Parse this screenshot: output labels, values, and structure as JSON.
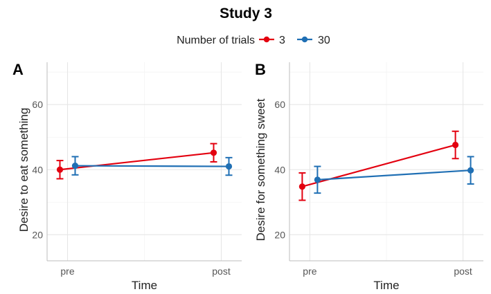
{
  "chart_data": {
    "type": "line",
    "title": "Study 3",
    "legend": {
      "title": "Number of trials",
      "placement": "top",
      "entries": [
        {
          "label": "3",
          "color": "#e3000f"
        },
        {
          "label": "30",
          "color": "#1f6fb4"
        }
      ]
    },
    "panels": [
      {
        "letter": "A",
        "xlabel": "Time",
        "ylabel": "Desire to eat something",
        "categories": [
          "pre",
          "post"
        ],
        "ylim": [
          12,
          73
        ],
        "yticks": [
          "20",
          "40",
          "60"
        ],
        "grid": true,
        "series": [
          {
            "name": "3",
            "color": "#e3000f",
            "values": [
              40,
              45.2
            ],
            "errors": [
              [
                37.2,
                42.8
              ],
              [
                42.4,
                48.0
              ]
            ]
          },
          {
            "name": "30",
            "color": "#1f6fb4",
            "values": [
              41.2,
              41.0
            ],
            "errors": [
              [
                38.4,
                44.0
              ],
              [
                38.3,
                43.7
              ]
            ]
          }
        ]
      },
      {
        "letter": "B",
        "xlabel": "Time",
        "ylabel": "Desire for something sweet",
        "categories": [
          "pre",
          "post"
        ],
        "ylim": [
          12,
          73
        ],
        "yticks": [
          "20",
          "40",
          "60"
        ],
        "grid": true,
        "series": [
          {
            "name": "3",
            "color": "#e3000f",
            "values": [
              34.8,
              47.6
            ],
            "errors": [
              [
                30.6,
                39.0
              ],
              [
                43.4,
                51.8
              ]
            ]
          },
          {
            "name": "30",
            "color": "#1f6fb4",
            "values": [
              36.9,
              39.8
            ],
            "errors": [
              [
                32.8,
                41.0
              ],
              [
                35.6,
                44.0
              ]
            ]
          }
        ]
      }
    ]
  }
}
